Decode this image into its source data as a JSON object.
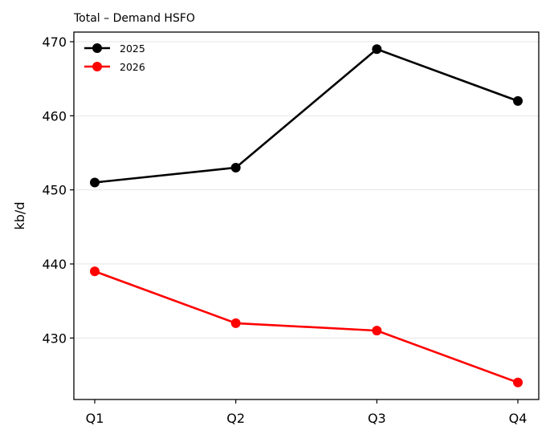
{
  "chart_data": {
    "type": "line",
    "title": "Total – Demand HSFO",
    "xlabel": "",
    "ylabel": "kb/d",
    "categories": [
      "Q1",
      "Q2",
      "Q3",
      "Q4"
    ],
    "series": [
      {
        "name": "2025",
        "color": "#000000",
        "values": [
          451,
          453,
          469,
          462
        ]
      },
      {
        "name": "2026",
        "color": "#ff0000",
        "values": [
          439,
          432,
          431,
          424
        ]
      }
    ],
    "ylim": [
      421.7,
      471.3
    ],
    "yticks": [
      430,
      440,
      450,
      460,
      470
    ],
    "grid": "horizontal",
    "legend_position": "top-left",
    "marker": "circle"
  }
}
